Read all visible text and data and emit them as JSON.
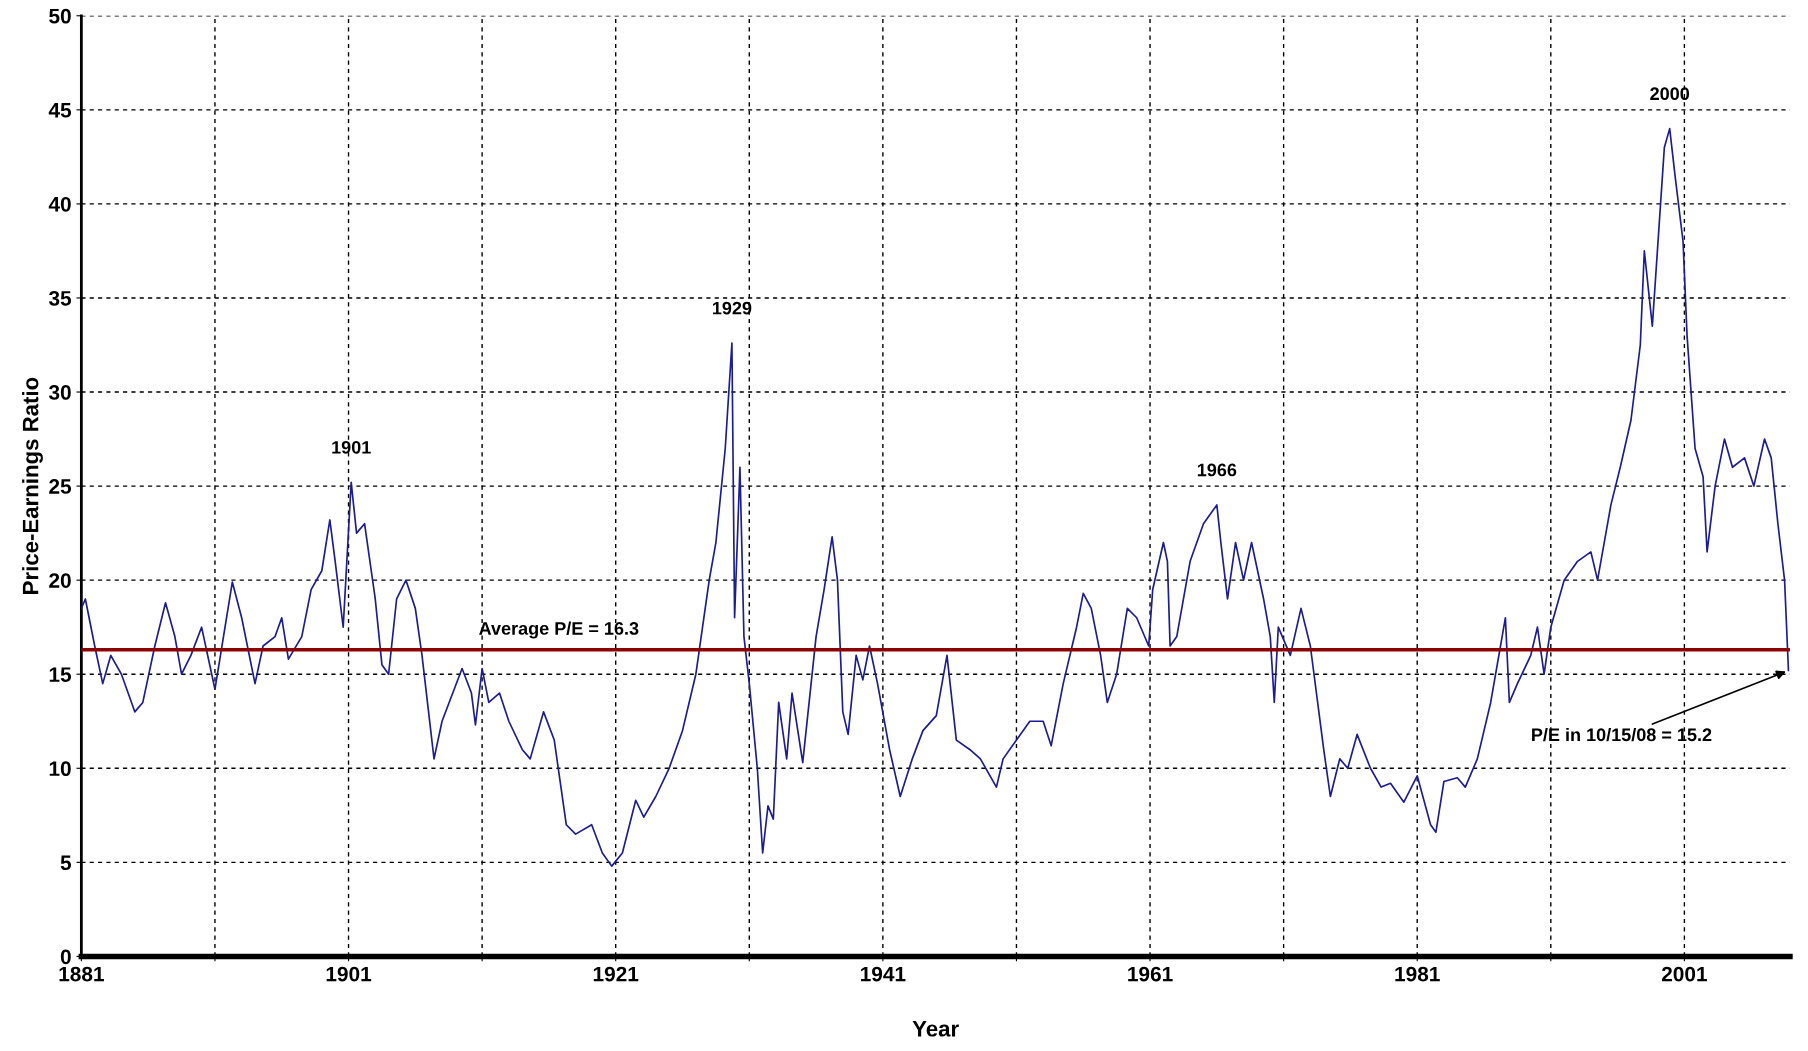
{
  "chart_data": {
    "type": "line",
    "xlabel": "Year",
    "ylabel": "Price-Earnings Ratio",
    "xlim": [
      1881,
      2008.9
    ],
    "ylim": [
      0,
      50
    ],
    "xticks": [
      1881,
      {
        "value": 1891,
        "label": null
      },
      1901,
      {
        "value": 1911,
        "label": null
      },
      1921,
      {
        "value": 1931,
        "label": null
      },
      1941,
      {
        "value": 1951,
        "label": null
      },
      1961,
      {
        "value": 1971,
        "label": null
      },
      1981,
      {
        "value": 1991,
        "label": null
      },
      2001
    ],
    "yticks": [
      0,
      5,
      10,
      15,
      20,
      25,
      30,
      35,
      40,
      45,
      50
    ],
    "grid": true,
    "legend": false,
    "marker": "none",
    "line_style": "solid",
    "ref_lines": [
      {
        "axis": "y",
        "value": 16.3,
        "label": "Average P/E = 16.3",
        "color": "#8b0000"
      }
    ],
    "annotations": [
      {
        "text": "1901",
        "x": 1901.2,
        "y": 25.2
      },
      {
        "text": "1929",
        "x": 1929.7,
        "y": 32.6
      },
      {
        "text": "1966",
        "x": 1966,
        "y": 24
      },
      {
        "text": "2000",
        "x": 1999.9,
        "y": 44
      },
      {
        "text": "P/E in 10/15/08 = 15.2",
        "x": 2008.79,
        "y": 15.2
      }
    ],
    "series": [
      {
        "color": "#1c1c96",
        "x": [
          1881.0,
          1881.3,
          1882,
          1882.6,
          1883.2,
          1884,
          1885,
          1885.6,
          1886.5,
          1887.3,
          1888,
          1888.5,
          1889.2,
          1890,
          1891,
          1892.3,
          1893,
          1894,
          1894.6,
          1895.5,
          1896,
          1896.5,
          1897.5,
          1898.2,
          1899,
          1899.6,
          1900,
          1900.6,
          1901.2,
          1901.6,
          1902.2,
          1903,
          1903.5,
          1904,
          1904.6,
          1905.3,
          1906,
          1906.5,
          1907.4,
          1908,
          1909.5,
          1910.2,
          1910.5,
          1911,
          1911.5,
          1912.3,
          1913,
          1914,
          1914.6,
          1915.6,
          1916.4,
          1917.3,
          1918,
          1919.2,
          1920,
          1920.7,
          1921.5,
          1922.5,
          1923.1,
          1924,
          1925,
          1926,
          1927,
          1928,
          1928.5,
          1929.2,
          1929.7,
          1929.9,
          1930.3,
          1930.6,
          1931,
          1931.6,
          1932,
          1932.4,
          1932.8,
          1933.2,
          1933.8,
          1934.2,
          1935,
          1936,
          1936.6,
          1937.2,
          1937.6,
          1938,
          1938.4,
          1939,
          1939.5,
          1940,
          1940.6,
          1941.5,
          1942.3,
          1943.2,
          1944,
          1945,
          1945.8,
          1946.5,
          1947.5,
          1948.3,
          1949.5,
          1950,
          1951,
          1952,
          1953,
          1953.6,
          1954.5,
          1955.5,
          1956,
          1956.6,
          1957.3,
          1957.8,
          1958.5,
          1959.3,
          1960,
          1960.9,
          1961.2,
          1962,
          1962.3,
          1962.5,
          1963,
          1964,
          1965,
          1966,
          1966.3,
          1966.8,
          1967.4,
          1968,
          1968.6,
          1969.5,
          1970,
          1970.3,
          1970.6,
          1971.5,
          1972.3,
          1973,
          1974,
          1974.5,
          1975.2,
          1975.8,
          1976.5,
          1977.5,
          1978.3,
          1979,
          1980,
          1981,
          1982,
          1982.4,
          1983,
          1984,
          1984.6,
          1985.5,
          1986.5,
          1987.6,
          1987.9,
          1988.5,
          1989.5,
          1990,
          1990.5,
          1991,
          1992,
          1993,
          1994,
          1994.5,
          1995.5,
          1996.2,
          1997,
          1997.7,
          1998,
          1998.6,
          1999.5,
          1999.9,
          2000.3,
          2000.9,
          2001.2,
          2001.8,
          2002.4,
          2002.7,
          2003.3,
          2004,
          2004.6,
          2005.5,
          2006.2,
          2007,
          2007.5,
          2008,
          2008.5,
          2008.79
        ],
        "values": [
          18.5,
          19.0,
          16.5,
          14.5,
          16,
          15,
          13,
          13.5,
          16.5,
          18.8,
          17,
          15,
          16,
          17.5,
          14.2,
          19.9,
          18,
          14.5,
          16.5,
          17,
          18,
          15.8,
          17,
          19.5,
          20.5,
          23.2,
          21,
          17.5,
          25.2,
          22.5,
          23,
          19,
          15.5,
          15,
          19,
          20,
          18.5,
          16,
          10.5,
          12.5,
          15.3,
          14,
          12.3,
          15.3,
          13.5,
          14,
          12.5,
          11,
          10.5,
          13,
          11.5,
          7,
          6.5,
          7,
          5.5,
          4.8,
          5.5,
          8.3,
          7.4,
          8.5,
          10,
          12,
          15,
          20,
          22,
          27,
          32.6,
          18,
          26,
          17,
          14.5,
          10,
          5.5,
          8,
          7.3,
          13.5,
          10.5,
          14,
          10.3,
          17,
          19.5,
          22.3,
          20,
          13,
          11.8,
          16,
          14.7,
          16.5,
          14.5,
          11,
          8.5,
          10.5,
          12,
          12.8,
          16,
          11.5,
          11,
          10.5,
          9,
          10.5,
          11.5,
          12.5,
          12.5,
          11.2,
          14.5,
          17.5,
          19.3,
          18.5,
          16,
          13.5,
          15,
          18.5,
          18,
          16.5,
          19.5,
          22,
          21,
          16.5,
          17,
          21,
          23,
          24,
          22,
          19,
          22,
          20,
          22,
          19,
          17,
          13.5,
          17.5,
          16,
          18.5,
          16.5,
          11,
          8.5,
          10.5,
          10,
          11.8,
          10,
          9,
          9.2,
          8.2,
          9.6,
          7,
          6.6,
          9.3,
          9.5,
          9,
          10.5,
          13.5,
          18,
          13.5,
          14.5,
          16,
          17.5,
          15,
          17.5,
          20,
          21,
          21.5,
          20,
          24,
          26,
          28.5,
          32.5,
          37.5,
          33.5,
          43,
          44,
          41.5,
          38,
          33,
          27,
          25.5,
          21.5,
          25,
          27.5,
          26,
          26.5,
          25,
          27.5,
          26.5,
          23,
          20,
          15.2
        ]
      }
    ]
  }
}
